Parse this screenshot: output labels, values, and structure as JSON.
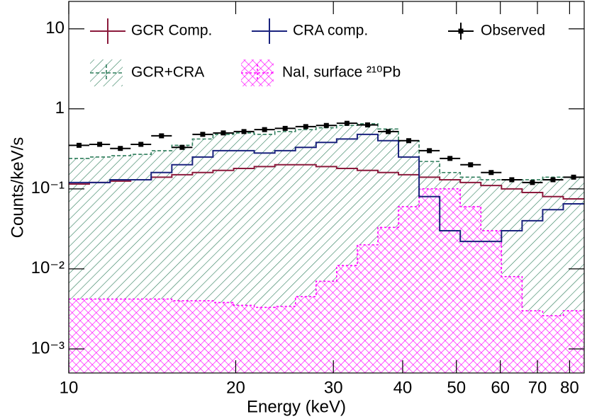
{
  "chart_data": {
    "type": "histogram",
    "log_x": true,
    "log_y": true,
    "x_label": "Energy (keV)",
    "y_label": "Counts/keV/s",
    "bins": [
      10,
      10.89,
      11.87,
      12.93,
      14.08,
      15.34,
      16.71,
      18.2,
      19.83,
      21.6,
      23.53,
      25.63,
      27.92,
      30.41,
      33.13,
      36.09,
      39.31,
      42.82,
      46.65,
      50.81,
      55.35,
      60.29,
      65.68,
      71.54,
      77.93,
      84.89
    ],
    "xlim": [
      10,
      85
    ],
    "xticks": [
      10,
      20,
      30,
      40,
      50,
      60,
      70,
      80
    ],
    "ylim": [
      0.0005,
      22
    ],
    "yticks": [
      {
        "value": 0.001,
        "label": "10⁻³"
      },
      {
        "value": 0.01,
        "label": "10⁻²"
      },
      {
        "value": 0.1,
        "label": "10⁻¹"
      },
      1,
      10
    ],
    "series": [
      {
        "name": "GCR+CRA",
        "style": "hatch",
        "color": "#2e7d5b",
        "values": [
          0.24,
          0.25,
          0.26,
          0.27,
          0.3,
          0.35,
          0.42,
          0.48,
          0.5,
          0.48,
          0.52,
          0.55,
          0.58,
          0.62,
          0.65,
          0.56,
          0.4,
          0.22,
          0.16,
          0.14,
          0.13,
          0.13,
          0.13,
          0.14,
          0.14
        ]
      },
      {
        "name": "NaI, surface ²¹⁰Pb",
        "style": "crosshatch",
        "color": "#ff00ff",
        "values": [
          0.0042,
          0.0042,
          0.0042,
          0.0042,
          0.0042,
          0.004,
          0.004,
          0.0038,
          0.0035,
          0.0033,
          0.0034,
          0.0045,
          0.007,
          0.011,
          0.02,
          0.033,
          0.06,
          0.1,
          0.1,
          0.06,
          0.03,
          0.008,
          0.003,
          0.0026,
          0.003
        ]
      },
      {
        "name": "GCR Comp.",
        "style": "line",
        "color": "#8b1a3c",
        "values": [
          0.115,
          0.12,
          0.125,
          0.13,
          0.14,
          0.15,
          0.16,
          0.17,
          0.18,
          0.19,
          0.2,
          0.2,
          0.19,
          0.18,
          0.17,
          0.16,
          0.15,
          0.14,
          0.13,
          0.12,
          0.11,
          0.1,
          0.09,
          0.08,
          0.075
        ]
      },
      {
        "name": "CRA comp.",
        "style": "line",
        "color": "#1a237e",
        "values": [
          0.12,
          0.12,
          0.13,
          0.13,
          0.16,
          0.2,
          0.25,
          0.3,
          0.3,
          0.28,
          0.3,
          0.33,
          0.38,
          0.42,
          0.48,
          0.4,
          0.25,
          0.08,
          0.03,
          0.022,
          0.022,
          0.03,
          0.04,
          0.055,
          0.065
        ]
      },
      {
        "name": "Observed",
        "style": "points",
        "color": "#000000",
        "values": [
          0.35,
          0.36,
          0.32,
          0.36,
          0.46,
          0.33,
          0.48,
          0.5,
          0.52,
          0.55,
          0.57,
          0.6,
          0.62,
          0.66,
          0.63,
          0.52,
          0.4,
          0.3,
          0.24,
          0.2,
          0.16,
          0.13,
          0.12,
          0.13,
          0.14
        ]
      }
    ]
  }
}
